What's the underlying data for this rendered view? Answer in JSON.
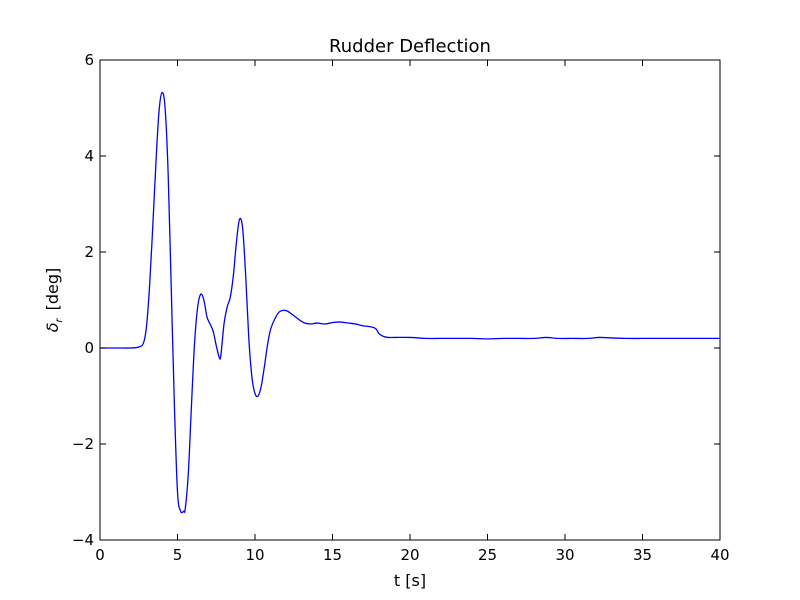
{
  "chart_data": {
    "type": "line",
    "title": "Rudder Deflection",
    "xlabel": "t [s]",
    "ylabel_symbol": "δ",
    "ylabel_subscript": "r",
    "ylabel_unit": "[deg]",
    "xlim": [
      0,
      40
    ],
    "ylim": [
      -4,
      6
    ],
    "xticks": [
      0,
      5,
      10,
      15,
      20,
      25,
      30,
      35,
      40
    ],
    "yticks": [
      -4,
      -2,
      0,
      2,
      4,
      6
    ],
    "xtick_labels": [
      "0",
      "5",
      "10",
      "15",
      "20",
      "25",
      "30",
      "35",
      "40"
    ],
    "ytick_labels": [
      "−4",
      "−2",
      "0",
      "2",
      "4",
      "6"
    ],
    "grid": false,
    "series": [
      {
        "color": "#0000ff",
        "x": [
          0,
          1,
          2,
          2.5,
          2.8,
          3.0,
          3.2,
          3.4,
          3.6,
          3.8,
          4.0,
          4.2,
          4.4,
          4.6,
          4.8,
          5.0,
          5.2,
          5.4,
          5.5,
          5.7,
          5.9,
          6.1,
          6.3,
          6.5,
          6.7,
          6.9,
          7.1,
          7.3,
          7.5,
          7.7,
          7.8,
          8.0,
          8.2,
          8.4,
          8.6,
          8.8,
          9.0,
          9.2,
          9.4,
          9.6,
          9.8,
          10.0,
          10.2,
          10.4,
          10.6,
          10.8,
          11.0,
          11.3,
          11.6,
          12.0,
          12.4,
          12.8,
          13.2,
          13.6,
          14.0,
          14.5,
          15.0,
          15.5,
          16.0,
          16.5,
          17.0,
          17.5,
          17.8,
          18.0,
          18.3,
          18.6,
          19.0,
          20.0,
          21.0,
          22.0,
          23.0,
          24.0,
          25.0,
          26.0,
          27.0,
          28.0,
          28.8,
          29.5,
          30.5,
          31.5,
          32.2,
          33.0,
          34.0,
          35.0,
          36.0,
          37.0,
          38.0,
          39.0,
          40.0
        ],
        "y": [
          0,
          0,
          0,
          0.02,
          0.1,
          0.45,
          1.3,
          2.5,
          3.8,
          4.9,
          5.32,
          5.0,
          3.6,
          1.2,
          -1.2,
          -3.0,
          -3.4,
          -3.4,
          -3.35,
          -2.6,
          -1.2,
          0.1,
          0.85,
          1.12,
          1.0,
          0.65,
          0.5,
          0.35,
          0.05,
          -0.2,
          -0.15,
          0.5,
          0.85,
          1.05,
          1.5,
          2.2,
          2.68,
          2.5,
          1.5,
          0.2,
          -0.6,
          -0.95,
          -1.0,
          -0.8,
          -0.4,
          0.05,
          0.38,
          0.62,
          0.76,
          0.78,
          0.7,
          0.6,
          0.52,
          0.5,
          0.52,
          0.5,
          0.53,
          0.54,
          0.52,
          0.5,
          0.46,
          0.44,
          0.4,
          0.3,
          0.24,
          0.22,
          0.22,
          0.22,
          0.2,
          0.2,
          0.2,
          0.2,
          0.19,
          0.2,
          0.2,
          0.2,
          0.22,
          0.2,
          0.2,
          0.2,
          0.22,
          0.21,
          0.2,
          0.2,
          0.2,
          0.2,
          0.2,
          0.2,
          0.2
        ]
      }
    ]
  }
}
